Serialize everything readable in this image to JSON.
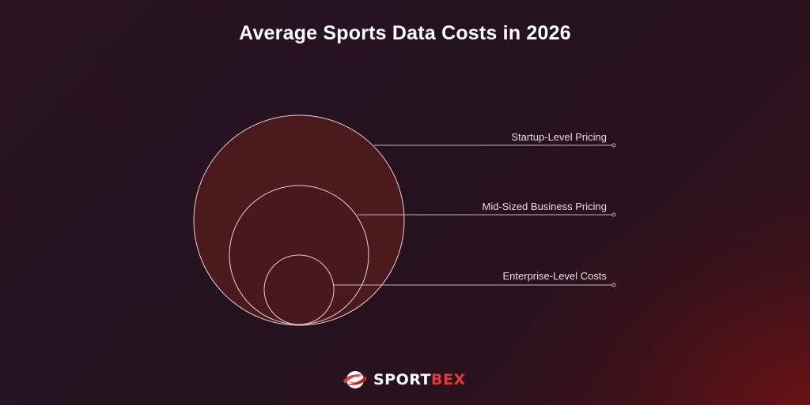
{
  "title": "Average Sports Data Costs in 2026",
  "tiers": [
    {
      "label": "Startup-Level Pricing"
    },
    {
      "label": "Mid-Sized Business Pricing"
    },
    {
      "label": "Enterprise-Level Costs"
    }
  ],
  "brand": {
    "name_part1": "SPORT",
    "name_part2": "BEX",
    "logo_icon": "sportbex-ball-icon"
  },
  "colors": {
    "circle_fill": "#4a1a1d",
    "circle_stroke": "#e8cfcf",
    "accent": "#e23a3a"
  }
}
